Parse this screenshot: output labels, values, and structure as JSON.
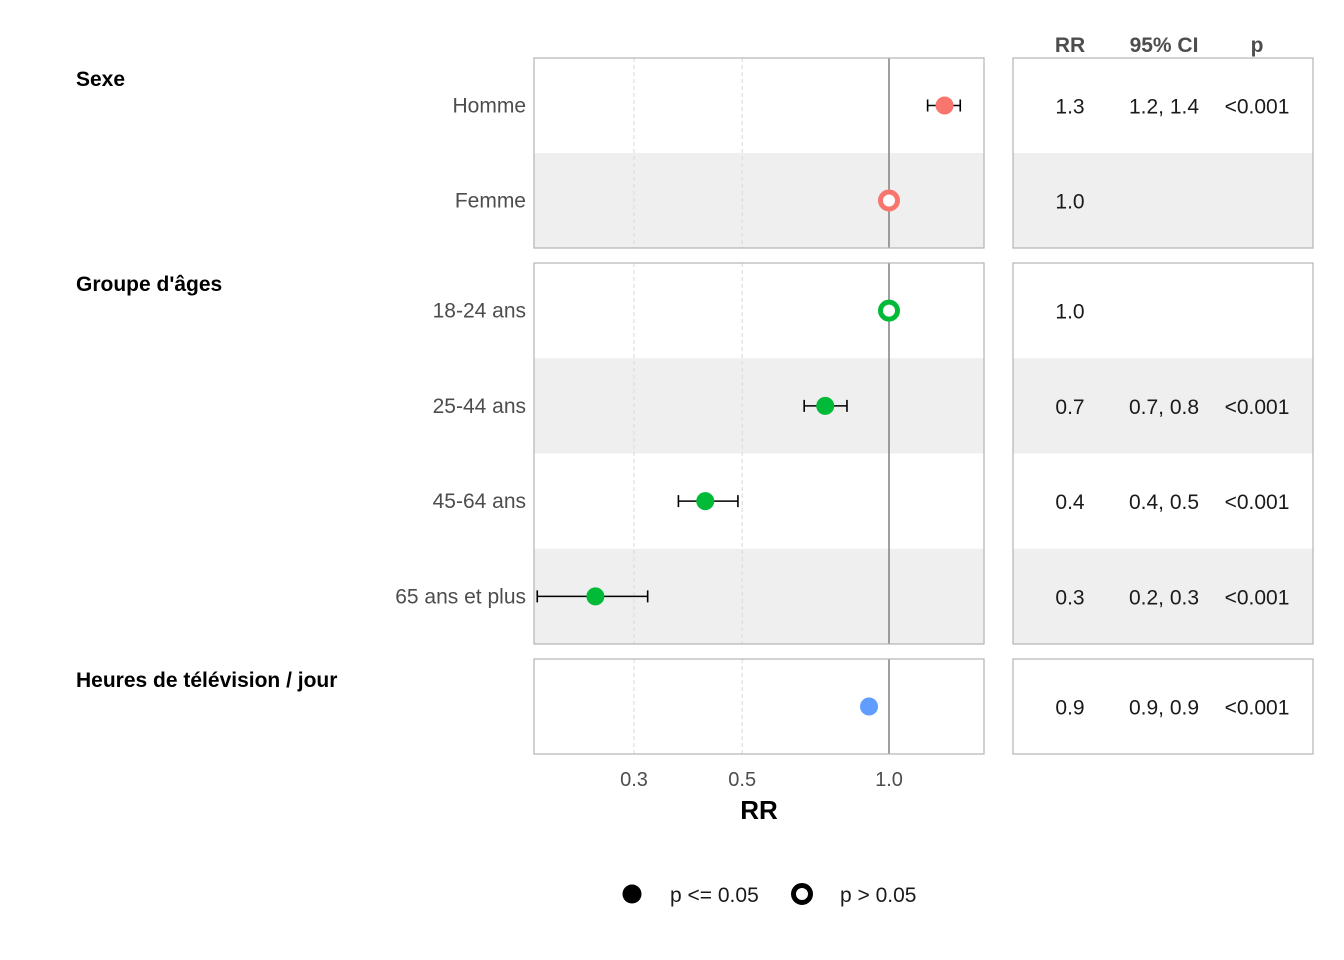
{
  "chart_data": {
    "type": "scatter",
    "xlabel": "RR",
    "x_scale": "log",
    "xlim": [
      0.2,
      1.6
    ],
    "x_ticks": [
      {
        "value": 0.3,
        "label": "0.3"
      },
      {
        "value": 0.5,
        "label": "0.5"
      },
      {
        "value": 1.0,
        "label": "1.0"
      }
    ],
    "reference_line": 1.0,
    "columns": {
      "rr": "RR",
      "ci": "95% CI",
      "p": "p"
    },
    "groups": [
      {
        "label": "Sexe",
        "color": "#F8766D",
        "rows": [
          {
            "label": "Homme",
            "rr": 1.3,
            "ci_low": 1.2,
            "ci_high": 1.4,
            "significant": true,
            "rr_text": "1.3",
            "ci_text": "1.2, 1.4",
            "p_text": "<0.001"
          },
          {
            "label": "Femme",
            "rr": 1.0,
            "ci_low": null,
            "ci_high": null,
            "significant": false,
            "rr_text": "1.0",
            "ci_text": "",
            "p_text": ""
          }
        ]
      },
      {
        "label": "Groupe d'âges",
        "color": "#00BA38",
        "rows": [
          {
            "label": "18-24 ans",
            "rr": 1.0,
            "ci_low": null,
            "ci_high": null,
            "significant": false,
            "rr_text": "1.0",
            "ci_text": "",
            "p_text": ""
          },
          {
            "label": "25-44 ans",
            "rr": 0.74,
            "ci_low": 0.67,
            "ci_high": 0.82,
            "significant": true,
            "rr_text": "0.7",
            "ci_text": "0.7, 0.8",
            "p_text": "<0.001"
          },
          {
            "label": "45-64 ans",
            "rr": 0.42,
            "ci_low": 0.37,
            "ci_high": 0.49,
            "significant": true,
            "rr_text": "0.4",
            "ci_text": "0.4, 0.5",
            "p_text": "<0.001"
          },
          {
            "label": "65 ans et plus",
            "rr": 0.25,
            "ci_low": 0.19,
            "ci_high": 0.32,
            "significant": true,
            "rr_text": "0.3",
            "ci_text": "0.2, 0.3",
            "p_text": "<0.001"
          }
        ]
      },
      {
        "label": "Heures de télévision / jour",
        "color": "#619CFF",
        "rows": [
          {
            "label": "",
            "rr": 0.91,
            "ci_low": 0.9,
            "ci_high": 0.92,
            "significant": true,
            "rr_text": "0.9",
            "ci_text": "0.9, 0.9",
            "p_text": "<0.001"
          }
        ]
      }
    ],
    "legend": {
      "position": "bottom",
      "items": [
        {
          "label": "p <= 0.05",
          "filled": true
        },
        {
          "label": "p > 0.05",
          "filled": false
        }
      ]
    }
  }
}
